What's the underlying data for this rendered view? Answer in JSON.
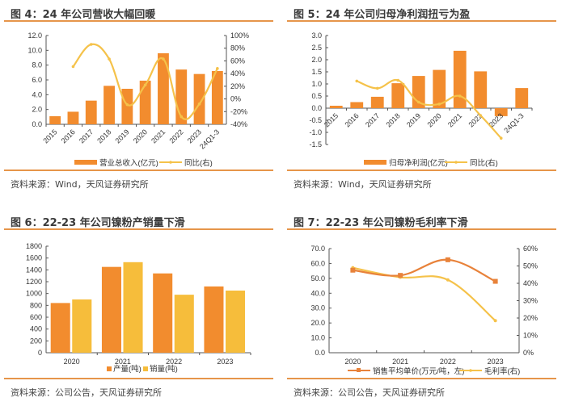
{
  "colors": {
    "bar_orange": "#f28c2e",
    "bar_yellow": "#f6bd3b",
    "line_yellow": "#f5c24a",
    "line_orange": "#e8823a",
    "rule": "#e6954a"
  },
  "panels": [
    {
      "title": "图 4：24 年公司营收大幅回暖",
      "source": "资料来源：Wind，天风证券研究所"
    },
    {
      "title": "图 5：24 年公司归母净利润扭亏为盈",
      "source": "资料来源：Wind，天风证券研究所"
    },
    {
      "title": "图 6：22-23 年公司镍粉产销量下滑",
      "source": "资料来源：公司公告，天风证券研究所"
    },
    {
      "title": "图 7：22-23 年公司镍粉毛利率下滑",
      "source": "资料来源：公司公告，天风证券研究所"
    }
  ],
  "chart_data": [
    {
      "type": "bar",
      "title": "图 4：24 年公司营收大幅回暖",
      "categories": [
        "2015",
        "2016",
        "2017",
        "2018",
        "2019",
        "2020",
        "2021",
        "2022",
        "2023",
        "24Q1-3"
      ],
      "series": [
        {
          "name": "营业总收入(亿元)",
          "type": "bar",
          "axis": "left",
          "values": [
            1.1,
            1.7,
            3.2,
            5.2,
            4.8,
            5.9,
            9.6,
            7.4,
            6.8,
            7.2
          ]
        },
        {
          "name": "同比(右)",
          "type": "line",
          "axis": "right",
          "values": [
            null,
            51,
            86,
            63,
            -9,
            22,
            63,
            -28,
            -8,
            48
          ]
        }
      ],
      "ylim": [
        0,
        12
      ],
      "yticks": [
        "0.0",
        "2.0",
        "4.0",
        "6.0",
        "8.0",
        "10.0",
        "12.0"
      ],
      "y2lim": [
        -40,
        100
      ],
      "y2ticks": [
        "-40%",
        "-20%",
        "0%",
        "20%",
        "40%",
        "60%",
        "80%",
        "100%"
      ],
      "legend": "bottom",
      "grid": false
    },
    {
      "type": "bar",
      "title": "图 5：24 年公司归母净利润扭亏为盈",
      "categories": [
        "2015",
        "2016",
        "2017",
        "2018",
        "2019",
        "2020",
        "2021",
        "2022",
        "2023",
        "24Q1-3"
      ],
      "series": [
        {
          "name": "归母净利润(亿元)",
          "type": "bar",
          "axis": "left",
          "values": [
            0.1,
            0.25,
            0.47,
            1.03,
            1.33,
            1.58,
            2.37,
            1.52,
            -0.33,
            0.83
          ]
        },
        {
          "name": "同比(右)",
          "type": "line",
          "axis": "hidden-right",
          "plotted_on_left_scale": [
            null,
            1.12,
            0.82,
            1.15,
            0.25,
            0.17,
            0.5,
            -0.3,
            -1.24,
            null
          ]
        }
      ],
      "ylim": [
        -1.5,
        3.0
      ],
      "yticks": [
        "-1.5",
        "-1.0",
        "-0.5",
        "0.0",
        "0.5",
        "1.0",
        "1.5",
        "2.0",
        "2.5",
        "3.0"
      ],
      "legend": "bottom",
      "grid": false
    },
    {
      "type": "bar",
      "title": "图 6：22-23 年公司镍粉产销量下滑",
      "categories": [
        "2020",
        "2021",
        "2022",
        "2023"
      ],
      "series": [
        {
          "name": "产量(吨)",
          "values": [
            840,
            1450,
            1340,
            1120
          ]
        },
        {
          "name": "销量(吨)",
          "values": [
            900,
            1530,
            980,
            1050
          ]
        }
      ],
      "ylim": [
        0,
        1800
      ],
      "yticks": [
        "0",
        "200",
        "400",
        "600",
        "800",
        "1000",
        "1200",
        "1400",
        "1600",
        "1800"
      ],
      "legend": "bottom",
      "grid": false
    },
    {
      "type": "line",
      "title": "图 7：22-23 年公司镍粉毛利率下滑",
      "categories": [
        "2020",
        "2021",
        "2022",
        "2023"
      ],
      "series": [
        {
          "name": "销售平均单价(万元/吨，左)",
          "axis": "left",
          "values": [
            55.5,
            52.0,
            62.5,
            48.0
          ]
        },
        {
          "name": "毛利率(右)",
          "axis": "right",
          "values": [
            49,
            43.5,
            42,
            18.5
          ]
        }
      ],
      "ylim": [
        0,
        70
      ],
      "yticks": [
        "0.0",
        "10.0",
        "20.0",
        "30.0",
        "40.0",
        "50.0",
        "60.0",
        "70.0"
      ],
      "y2lim": [
        0,
        60
      ],
      "y2ticks": [
        "0%",
        "10%",
        "20%",
        "30%",
        "40%",
        "50%",
        "60%"
      ],
      "legend": "bottom",
      "grid": false
    }
  ]
}
